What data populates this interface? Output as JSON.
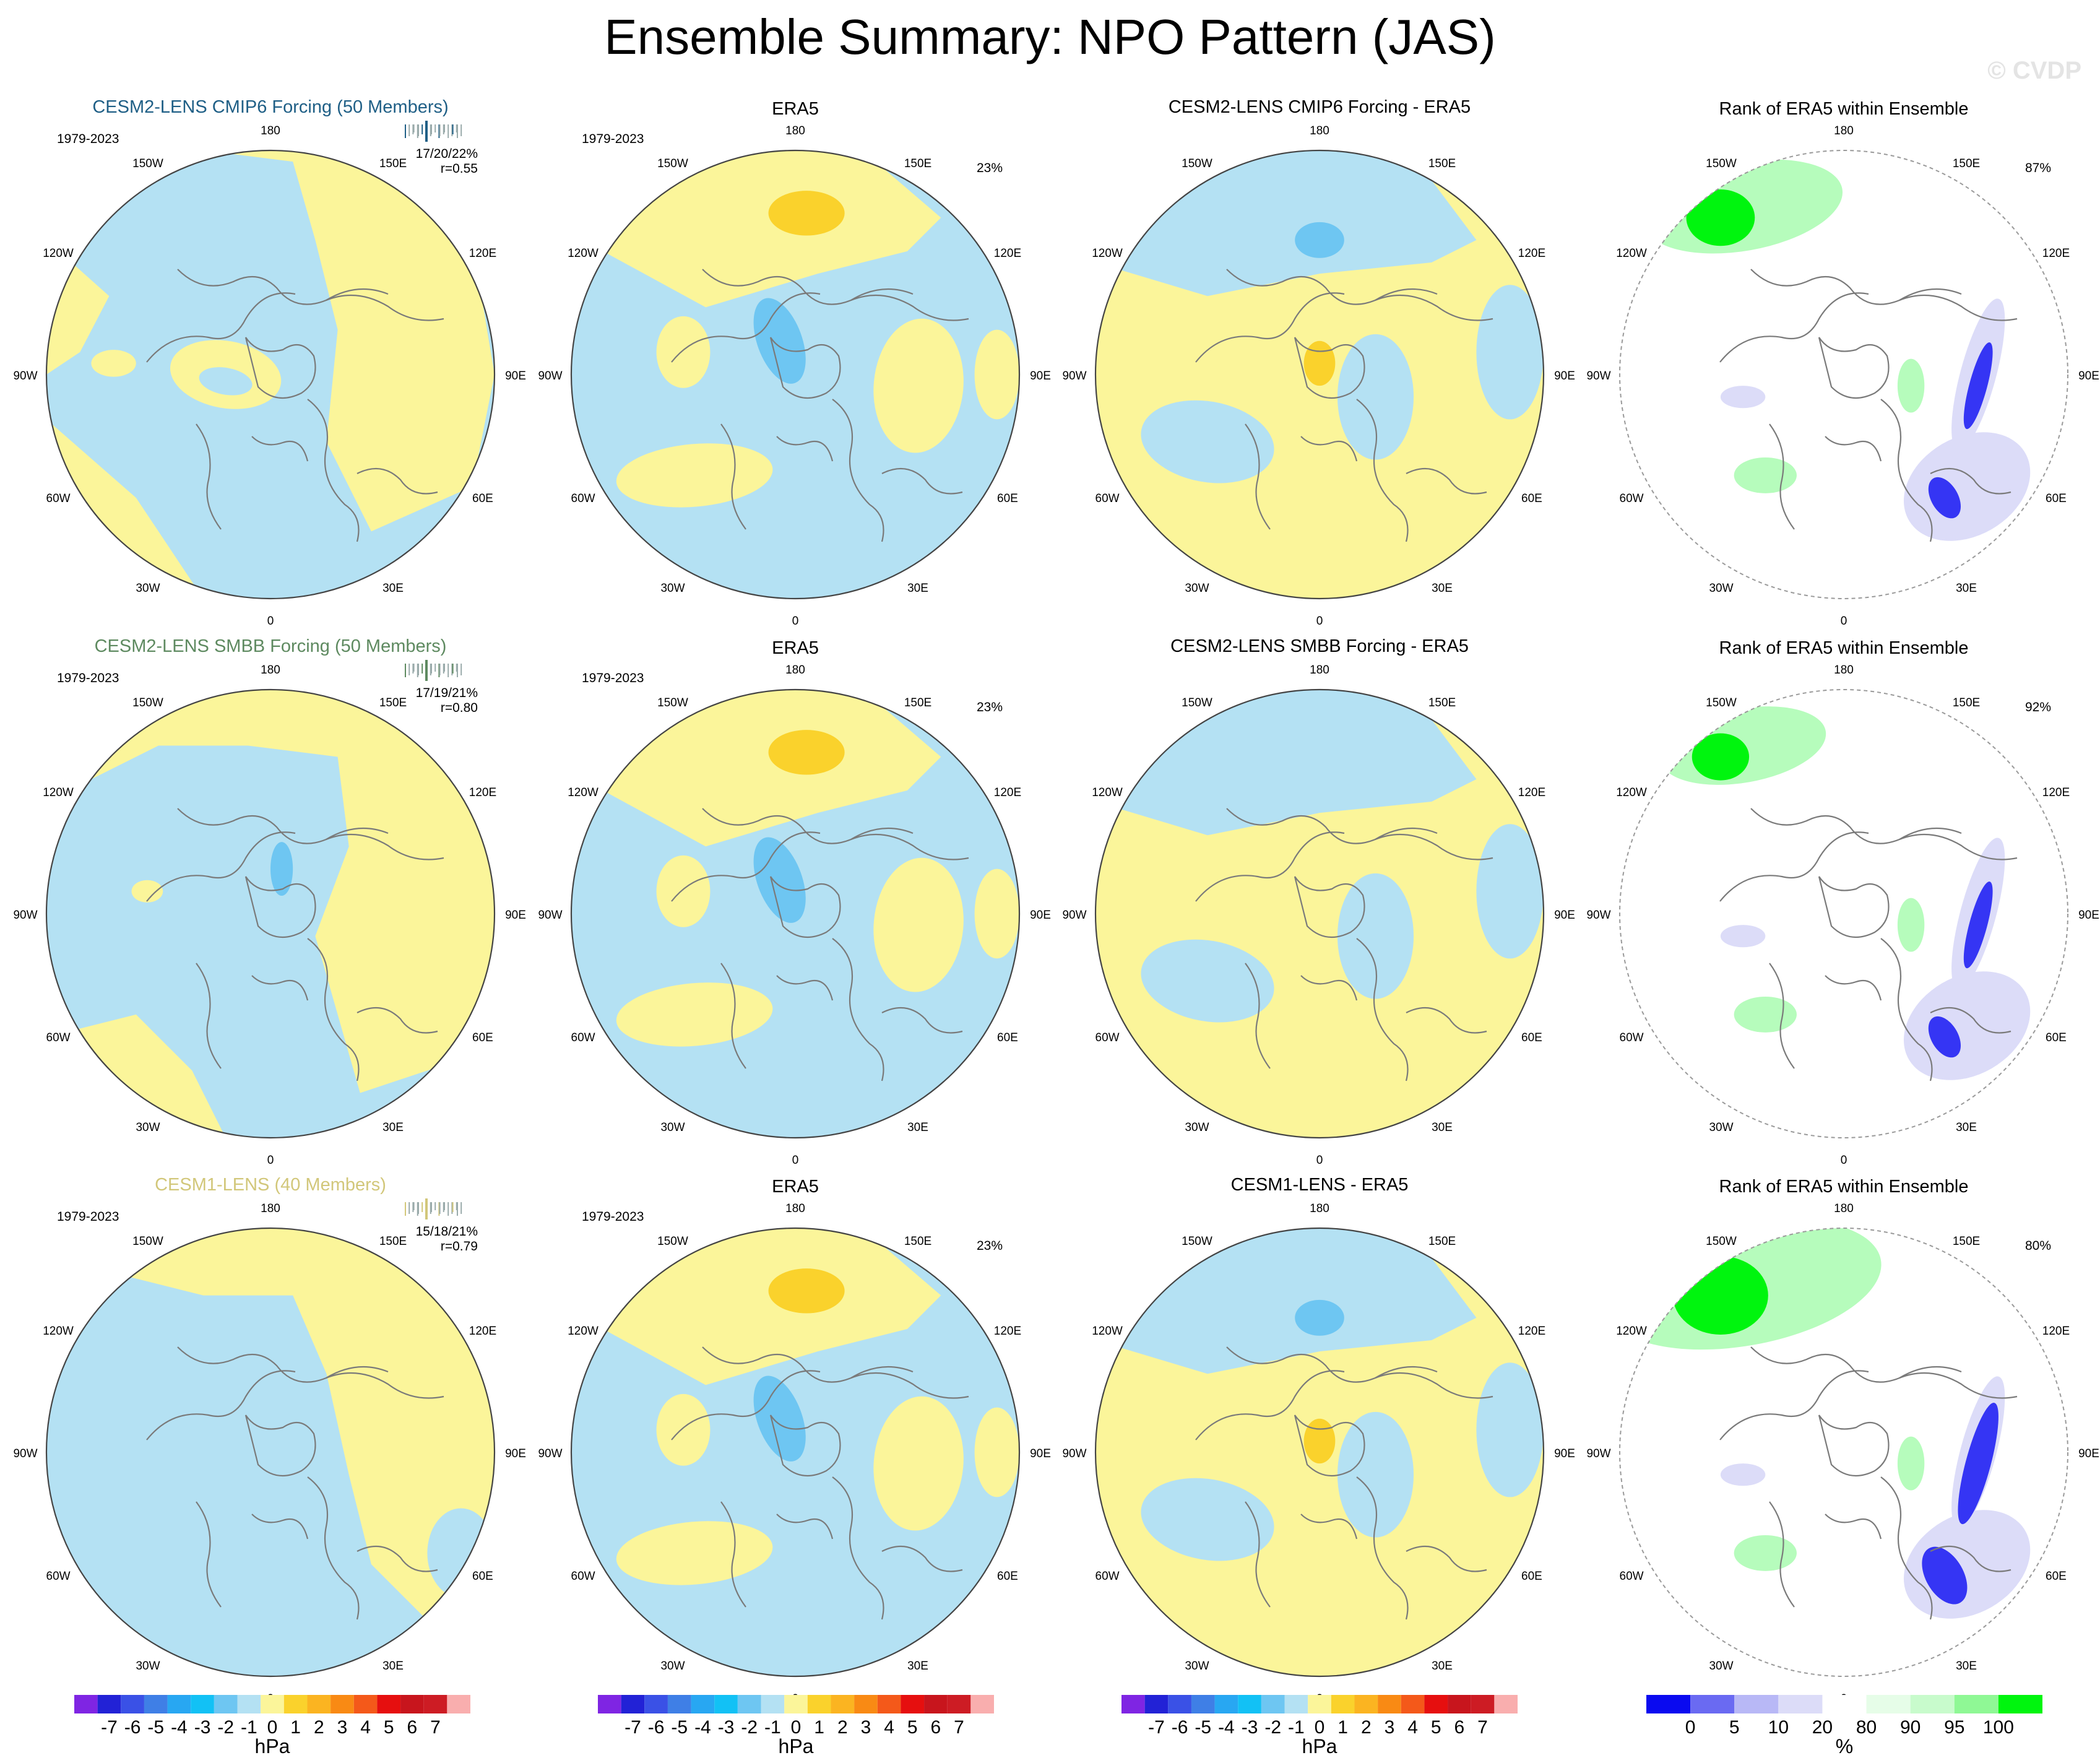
{
  "title": "Ensemble Summary: NPO Pattern (JAS)",
  "watermark": "© CVDP",
  "colors": {
    "ocean_neg": "#b4e1f3",
    "yellow_pos": "#fbf59a",
    "blue_strong": "#6ec6f2",
    "orange_strong": "#fad22c",
    "rank_green": "#00f50e",
    "rank_light_green": "#b6fcbc",
    "rank_blue": "#3535f4",
    "rank_light_blue": "#dcdcf8",
    "coast": "#7a7a7a",
    "row1_title": "#1f5f86",
    "row2_title": "#5e8a60",
    "row3_title": "#d2c77a"
  },
  "rows": [
    {
      "model_title": "CESM2-LENS CMIP6 Forcing (50 Members)",
      "title_color": "#1f5f86",
      "period": "1979-2023",
      "stats": "17/20/22%",
      "corr": "r=0.55",
      "era5_title": "ERA5",
      "era5_period": "1979-2023",
      "era5_pct": "23%",
      "diff_title": "CESM2-LENS CMIP6 Forcing - ERA5",
      "rank_title": "Rank of ERA5 within Ensemble",
      "rank_pct": "87%"
    },
    {
      "model_title": "CESM2-LENS SMBB Forcing (50 Members)",
      "title_color": "#5e8a60",
      "period": "1979-2023",
      "stats": "17/19/21%",
      "corr": "r=0.80",
      "era5_title": "ERA5",
      "era5_period": "1979-2023",
      "era5_pct": "23%",
      "diff_title": "CESM2-LENS SMBB Forcing - ERA5",
      "rank_title": "Rank of ERA5 within Ensemble",
      "rank_pct": "92%"
    },
    {
      "model_title": "CESM1-LENS (40 Members)",
      "title_color": "#d2c77a",
      "period": "1979-2023",
      "stats": "15/18/21%",
      "corr": "r=0.79",
      "era5_title": "ERA5",
      "era5_period": "1979-2023",
      "era5_pct": "23%",
      "diff_title": "CESM1-LENS - ERA5",
      "rank_title": "Rank of ERA5 within Ensemble",
      "rank_pct": "80%"
    }
  ],
  "longitude_labels": [
    "180",
    "150E",
    "120E",
    "90E",
    "60E",
    "30E",
    "0",
    "30W",
    "60W",
    "90W",
    "120W",
    "150W"
  ],
  "colorbar_hpa": {
    "colors": [
      "#7f25e3",
      "#2222d6",
      "#3a51e6",
      "#3f7fe6",
      "#28a7f2",
      "#12c1f5",
      "#6ec6f2",
      "#b4e1f3",
      "#fbf59a",
      "#fad22c",
      "#fbb421",
      "#f98a14",
      "#f4591a",
      "#e60f0f",
      "#c8151d",
      "#cd1c24",
      "#f9aeae"
    ],
    "labels": [
      "-7",
      "-6",
      "-5",
      "-4",
      "-3",
      "-2",
      "-1",
      "0",
      "1",
      "2",
      "3",
      "4",
      "5",
      "6",
      "7"
    ],
    "unit": "hPa"
  },
  "colorbar_rank": {
    "colors": [
      "#0a0af0",
      "#6a6af2",
      "#b8b8f6",
      "#dcdcf8",
      "#ffffff",
      "#e6fde8",
      "#c8fbcc",
      "#8ff895",
      "#00f50e"
    ],
    "labels": [
      "0",
      "5",
      "10",
      "20",
      "80",
      "90",
      "95",
      "100"
    ],
    "unit": "%"
  }
}
